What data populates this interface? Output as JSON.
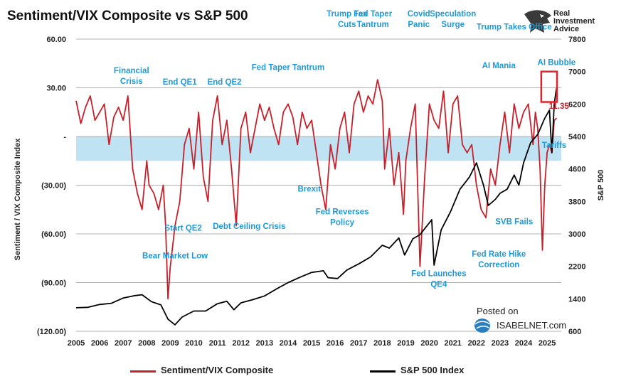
{
  "title": "Sentiment/VIX Composite vs S&P 500",
  "branding": {
    "name_lines": [
      "Real",
      "Investment",
      "Advice"
    ],
    "posted_on": "Posted on",
    "source_site": "ISABELNET.com",
    "logo_icon": "eagle-head-icon",
    "site_icon": "globe-icon"
  },
  "colors": {
    "sentiment": "#c8202a",
    "sp500": "#000000",
    "annotation": "#1f9ad6",
    "band": "#bfe3f3",
    "grid": "#b0b0b0",
    "highlight_box": "#e0242c"
  },
  "chart_data": {
    "type": "line",
    "xlabel": "",
    "ylabel_left": "Sentiment / VIX Composite Index",
    "ylabel_right": "S&P 500",
    "x_ticks": [
      "2005",
      "2006",
      "2007",
      "2008",
      "2009",
      "2010",
      "2011",
      "2012",
      "2013",
      "2014",
      "2015",
      "2016",
      "2017",
      "2018",
      "2019",
      "2020",
      "2021",
      "2022",
      "2023",
      "2024",
      "2025"
    ],
    "x_range": [
      2005.0,
      2025.6
    ],
    "left_axis": {
      "ylim": [
        -120,
        60
      ],
      "ticks": [
        60,
        30,
        0,
        -30,
        -60,
        -90,
        -120
      ],
      "tick_labels": [
        "60.00",
        "30.00",
        "-",
        "(30.00)",
        "(60.00)",
        "(90.00)",
        "(120.00)"
      ]
    },
    "right_axis": {
      "ylim": [
        600,
        7800
      ],
      "ticks": [
        600,
        1400,
        2200,
        3000,
        3800,
        4600,
        5400,
        6200,
        7000,
        7800
      ],
      "tick_labels": [
        "600",
        "1400",
        "2200",
        "3000",
        "3800",
        "4600",
        "5400",
        "6200",
        "7000",
        "7800"
      ]
    },
    "shaded_band": {
      "from": -15,
      "to": 0
    },
    "grid": true,
    "legend_position": "bottom",
    "series": [
      {
        "name": "Sentiment/VIX Composite",
        "axis": "left",
        "x": [
          2005.0,
          2005.2,
          2005.4,
          2005.6,
          2005.8,
          2006.0,
          2006.2,
          2006.4,
          2006.6,
          2006.8,
          2007.0,
          2007.2,
          2007.4,
          2007.6,
          2007.8,
          2008.0,
          2008.1,
          2008.3,
          2008.5,
          2008.7,
          2008.8,
          2008.9,
          2009.0,
          2009.2,
          2009.4,
          2009.6,
          2009.8,
          2010.0,
          2010.2,
          2010.4,
          2010.6,
          2010.8,
          2011.0,
          2011.2,
          2011.4,
          2011.6,
          2011.8,
          2012.0,
          2012.2,
          2012.4,
          2012.6,
          2012.8,
          2013.0,
          2013.2,
          2013.4,
          2013.6,
          2013.8,
          2014.0,
          2014.2,
          2014.4,
          2014.6,
          2014.8,
          2015.0,
          2015.2,
          2015.4,
          2015.6,
          2015.8,
          2016.0,
          2016.2,
          2016.4,
          2016.6,
          2016.8,
          2017.0,
          2017.2,
          2017.4,
          2017.6,
          2017.8,
          2018.0,
          2018.1,
          2018.3,
          2018.5,
          2018.7,
          2018.9,
          2019.0,
          2019.2,
          2019.4,
          2019.6,
          2019.8,
          2020.0,
          2020.2,
          2020.4,
          2020.6,
          2020.8,
          2021.0,
          2021.2,
          2021.4,
          2021.6,
          2021.8,
          2022.0,
          2022.2,
          2022.4,
          2022.6,
          2022.8,
          2023.0,
          2023.2,
          2023.4,
          2023.6,
          2023.8,
          2024.0,
          2024.2,
          2024.4,
          2024.5,
          2024.6,
          2024.7,
          2024.8,
          2024.9,
          2025.0,
          2025.1,
          2025.2,
          2025.3,
          2025.4
        ],
        "y": [
          22,
          8,
          18,
          25,
          10,
          15,
          20,
          -5,
          12,
          18,
          10,
          25,
          -20,
          -35,
          -45,
          -15,
          -30,
          -35,
          -45,
          -30,
          -55,
          -100,
          -80,
          -55,
          -40,
          -5,
          5,
          -20,
          15,
          -25,
          -40,
          10,
          25,
          -5,
          10,
          -20,
          -55,
          5,
          15,
          -10,
          5,
          20,
          10,
          18,
          5,
          -5,
          15,
          20,
          12,
          -5,
          15,
          5,
          10,
          -10,
          -30,
          -45,
          -5,
          -20,
          5,
          15,
          -10,
          20,
          28,
          15,
          25,
          20,
          35,
          22,
          -20,
          5,
          -30,
          -10,
          -48,
          -15,
          5,
          20,
          -80,
          -25,
          20,
          10,
          5,
          28,
          -10,
          20,
          25,
          -5,
          -10,
          -5,
          -30,
          -45,
          -50,
          -20,
          -30,
          -5,
          15,
          -10,
          20,
          5,
          15,
          20,
          -5,
          15,
          5,
          -20,
          -70,
          -30,
          -10,
          -5,
          -10,
          10,
          11.35
        ]
      },
      {
        "name": "S&P 500 Index",
        "axis": "right",
        "x": [
          2005.0,
          2005.5,
          2006.0,
          2006.5,
          2007.0,
          2007.5,
          2007.8,
          2008.2,
          2008.6,
          2008.9,
          2009.2,
          2009.5,
          2010.0,
          2010.5,
          2011.0,
          2011.4,
          2011.7,
          2012.0,
          2012.5,
          2013.0,
          2013.5,
          2014.0,
          2014.5,
          2015.0,
          2015.5,
          2015.7,
          2016.1,
          2016.5,
          2017.0,
          2017.5,
          2018.0,
          2018.3,
          2018.7,
          2018.95,
          2019.3,
          2019.6,
          2019.9,
          2020.1,
          2020.2,
          2020.5,
          2020.9,
          2021.3,
          2021.7,
          2022.0,
          2022.3,
          2022.5,
          2022.8,
          2023.0,
          2023.3,
          2023.6,
          2023.8,
          2024.0,
          2024.3,
          2024.6,
          2024.9,
          2025.1,
          2025.2,
          2025.3,
          2025.4
        ],
        "y": [
          1180,
          1190,
          1260,
          1290,
          1420,
          1480,
          1500,
          1330,
          1250,
          900,
          760,
          950,
          1100,
          1100,
          1280,
          1340,
          1130,
          1300,
          1380,
          1470,
          1640,
          1800,
          1930,
          2050,
          2090,
          1920,
          1900,
          2110,
          2260,
          2430,
          2720,
          2650,
          2900,
          2480,
          2880,
          2980,
          3200,
          3350,
          2230,
          3100,
          3550,
          4100,
          4400,
          4750,
          4200,
          3700,
          3850,
          4000,
          4100,
          4450,
          4200,
          4750,
          5250,
          5450,
          5850,
          6050,
          5000,
          6200,
          6600
        ]
      }
    ],
    "annotations": [
      {
        "text": "Financial\nCrisis",
        "x": 2007.35,
        "y": 39
      },
      {
        "text": "End QE1",
        "x": 2009.4,
        "y": 32
      },
      {
        "text": "End QE2",
        "x": 2011.3,
        "y": 32
      },
      {
        "text": "Fed Taper Tantrum",
        "x": 2014.0,
        "y": 41
      },
      {
        "text": "Trump Tax\nCuts",
        "x": 2016.5,
        "y": 74
      },
      {
        "text": "Fed Taper\nTantrum",
        "x": 2017.6,
        "y": 74
      },
      {
        "text": "Covid\nPanic",
        "x": 2019.55,
        "y": 74
      },
      {
        "text": "Speculation\nSurge",
        "x": 2021.0,
        "y": 74
      },
      {
        "text": "Trump Takes Office",
        "x": 2023.6,
        "y": 66
      },
      {
        "text": "AI Mania",
        "x": 2022.95,
        "y": 42
      },
      {
        "text": "AI Bubble",
        "x": 2025.4,
        "y": 44
      },
      {
        "text": "11.35",
        "x": 2025.5,
        "y": 17
      },
      {
        "text": "Tariffs",
        "x": 2025.3,
        "y": -7
      },
      {
        "text": "Brexit",
        "x": 2014.9,
        "y": -34
      },
      {
        "text": "Fed Reverses\nPolicy",
        "x": 2016.3,
        "y": -48
      },
      {
        "text": "SVB Fails",
        "x": 2023.6,
        "y": -54
      },
      {
        "text": "Start QE2",
        "x": 2009.55,
        "y": -58
      },
      {
        "text": "Debt Ceiling Crisis",
        "x": 2012.35,
        "y": -57
      },
      {
        "text": "Bear Market Low",
        "x": 2009.2,
        "y": -75
      },
      {
        "text": "Fed Rate Hike\nCorrection",
        "x": 2022.95,
        "y": -74
      },
      {
        "text": "Fed Launches\nQE4",
        "x": 2020.4,
        "y": -86
      }
    ]
  },
  "legend": [
    {
      "label": "Sentiment/VIX Composite",
      "color": "#c8202a"
    },
    {
      "label": "S&P 500 Index",
      "color": "#000000"
    }
  ]
}
